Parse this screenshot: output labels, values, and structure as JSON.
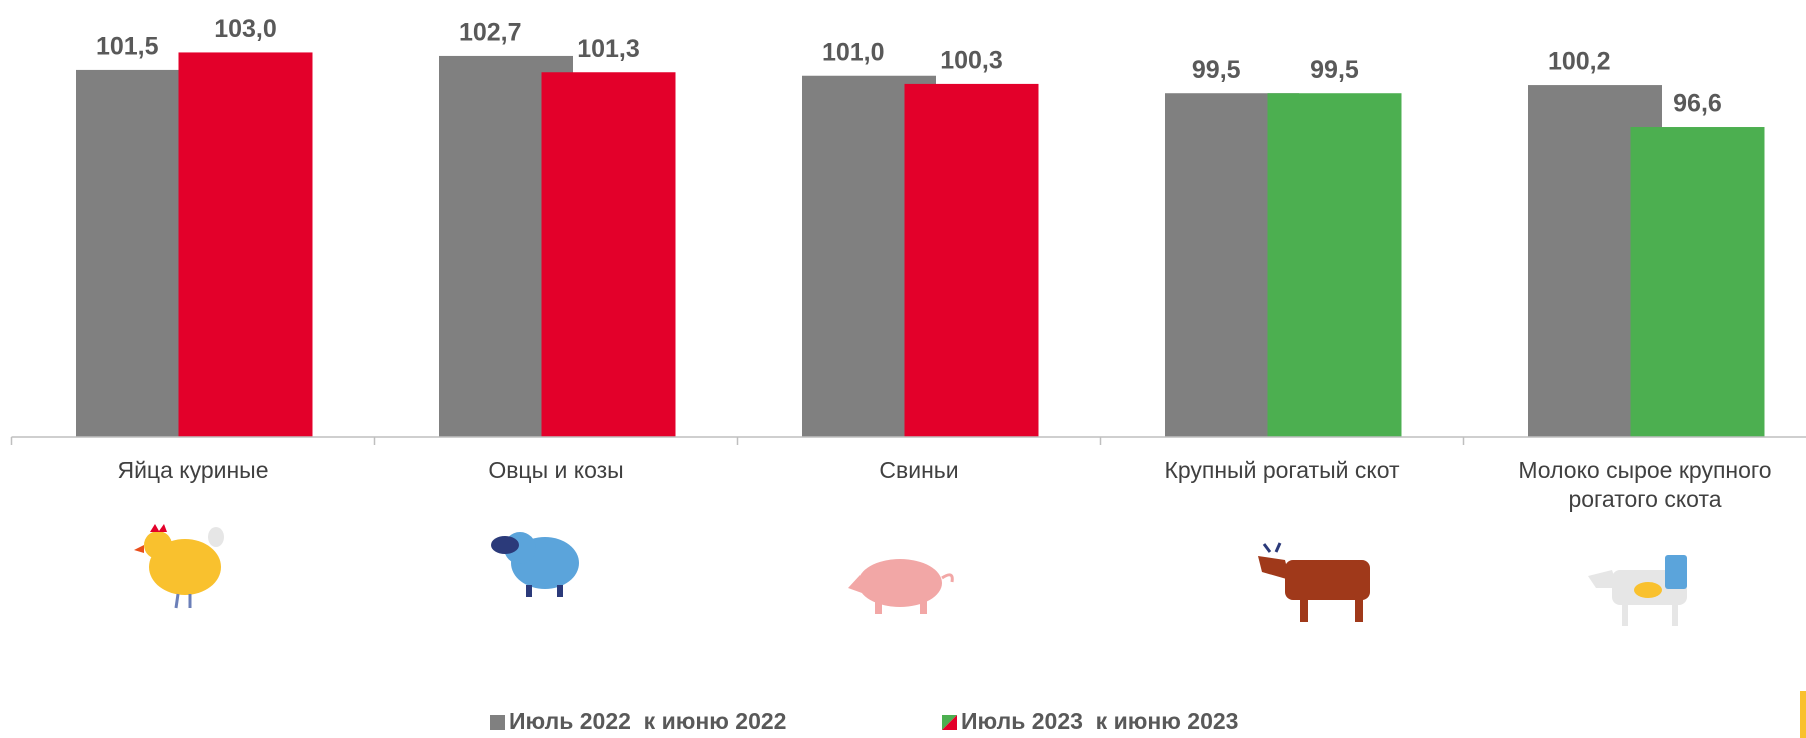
{
  "chart_data": {
    "type": "bar",
    "categories": [
      "Яйца куриные",
      "Овцы и козы",
      "Свиньи",
      "Крупный рогатый скот",
      "Молоко сырое крупного рогатого скота"
    ],
    "series": [
      {
        "name": "Июль 2022  к июню 2022",
        "color": "#808080",
        "values": [
          101.5,
          102.7,
          101.0,
          99.5,
          100.2
        ],
        "value_labels": [
          "101,5",
          "102,7",
          "101,0",
          "99,5",
          "100,2"
        ]
      },
      {
        "name": "Июль 2023  к июню 2023",
        "colors": [
          "#e3002a",
          "#e3002a",
          "#e3002a",
          "#4caf50",
          "#4caf50"
        ],
        "values": [
          103.0,
          101.3,
          100.3,
          99.5,
          96.6
        ],
        "value_labels": [
          "103,0",
          "101,3",
          "100,3",
          "99,5",
          "96,6"
        ]
      }
    ],
    "ylim": [
      70,
      107.5
    ]
  }
}
